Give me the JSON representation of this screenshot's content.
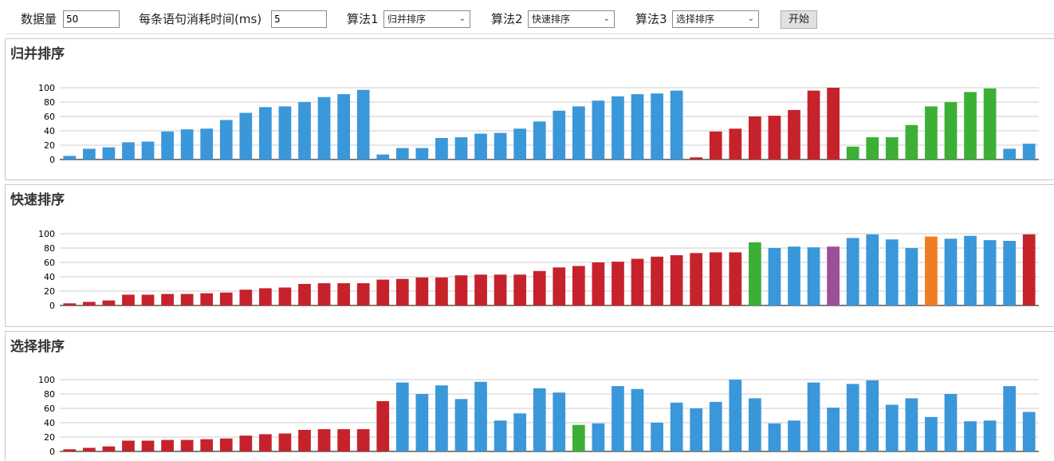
{
  "toolbar": {
    "count_label": "数据量",
    "count_value": "50",
    "time_label": "每条语句消耗时间(ms)",
    "time_value": "5",
    "algo1_label": "算法1",
    "algo1_value": "归并排序",
    "algo2_label": "算法2",
    "algo2_value": "快速排序",
    "algo3_label": "算法3",
    "algo3_value": "选择排序",
    "start_label": "开始",
    "chevron_icon": "chevron-down-icon"
  },
  "colors": {
    "default": "#3a97d9",
    "sorted": "#c6222b",
    "compare": "#3cb035",
    "pivot": "#ee7e22",
    "swap": "#9b4f96",
    "grid": "#cccccc",
    "axis": "#000000"
  },
  "chart_data": [
    {
      "type": "bar",
      "title": "归并排序",
      "ylim": [
        0,
        100
      ],
      "yticks": [
        0,
        20,
        40,
        60,
        80,
        100
      ],
      "grid": true,
      "values": [
        5,
        15,
        17,
        24,
        25,
        39,
        42,
        43,
        55,
        65,
        73,
        74,
        80,
        87,
        91,
        97,
        7,
        16,
        16,
        30,
        31,
        36,
        37,
        43,
        53,
        68,
        74,
        82,
        88,
        91,
        92,
        96,
        3,
        39,
        43,
        60,
        61,
        69,
        96,
        100,
        18,
        31,
        31,
        48,
        74,
        80,
        94,
        99,
        15,
        22
      ],
      "colors": [
        "default",
        "default",
        "default",
        "default",
        "default",
        "default",
        "default",
        "default",
        "default",
        "default",
        "default",
        "default",
        "default",
        "default",
        "default",
        "default",
        "default",
        "default",
        "default",
        "default",
        "default",
        "default",
        "default",
        "default",
        "default",
        "default",
        "default",
        "default",
        "default",
        "default",
        "default",
        "default",
        "sorted",
        "sorted",
        "sorted",
        "sorted",
        "sorted",
        "sorted",
        "sorted",
        "sorted",
        "compare",
        "compare",
        "compare",
        "compare",
        "compare",
        "compare",
        "compare",
        "compare",
        "default",
        "default"
      ]
    },
    {
      "type": "bar",
      "title": "快速排序",
      "ylim": [
        0,
        100
      ],
      "yticks": [
        0,
        20,
        40,
        60,
        80,
        100
      ],
      "grid": true,
      "values": [
        3,
        5,
        7,
        15,
        15,
        16,
        16,
        17,
        18,
        22,
        24,
        25,
        30,
        31,
        31,
        31,
        36,
        37,
        39,
        39,
        42,
        43,
        43,
        43,
        48,
        53,
        55,
        60,
        61,
        65,
        68,
        70,
        73,
        74,
        74,
        88,
        80,
        82,
        81,
        82,
        94,
        99,
        92,
        80,
        96,
        93,
        97,
        91,
        90,
        99
      ],
      "colors": [
        "sorted",
        "sorted",
        "sorted",
        "sorted",
        "sorted",
        "sorted",
        "sorted",
        "sorted",
        "sorted",
        "sorted",
        "sorted",
        "sorted",
        "sorted",
        "sorted",
        "sorted",
        "sorted",
        "sorted",
        "sorted",
        "sorted",
        "sorted",
        "sorted",
        "sorted",
        "sorted",
        "sorted",
        "sorted",
        "sorted",
        "sorted",
        "sorted",
        "sorted",
        "sorted",
        "sorted",
        "sorted",
        "sorted",
        "sorted",
        "sorted",
        "compare",
        "default",
        "default",
        "default",
        "swap",
        "default",
        "default",
        "default",
        "default",
        "pivot",
        "default",
        "default",
        "default",
        "default",
        "sorted"
      ]
    },
    {
      "type": "bar",
      "title": "选择排序",
      "ylim": [
        0,
        100
      ],
      "yticks": [
        0,
        20,
        40,
        60,
        80,
        100
      ],
      "grid": true,
      "values": [
        3,
        5,
        7,
        15,
        15,
        16,
        16,
        17,
        18,
        22,
        24,
        25,
        30,
        31,
        31,
        31,
        70,
        96,
        80,
        92,
        73,
        97,
        43,
        53,
        88,
        82,
        37,
        39,
        91,
        87,
        40,
        68,
        60,
        69,
        100,
        74,
        39,
        43,
        96,
        61,
        94,
        99,
        65,
        74,
        48,
        80,
        42,
        43,
        91,
        55
      ],
      "colors": [
        "sorted",
        "sorted",
        "sorted",
        "sorted",
        "sorted",
        "sorted",
        "sorted",
        "sorted",
        "sorted",
        "sorted",
        "sorted",
        "sorted",
        "sorted",
        "sorted",
        "sorted",
        "sorted",
        "sorted",
        "default",
        "default",
        "default",
        "default",
        "default",
        "default",
        "default",
        "default",
        "default",
        "compare",
        "default",
        "default",
        "default",
        "default",
        "default",
        "default",
        "default",
        "default",
        "default",
        "default",
        "default",
        "default",
        "default",
        "default",
        "default",
        "default",
        "default",
        "default",
        "default",
        "default",
        "default",
        "default",
        "default"
      ]
    }
  ]
}
